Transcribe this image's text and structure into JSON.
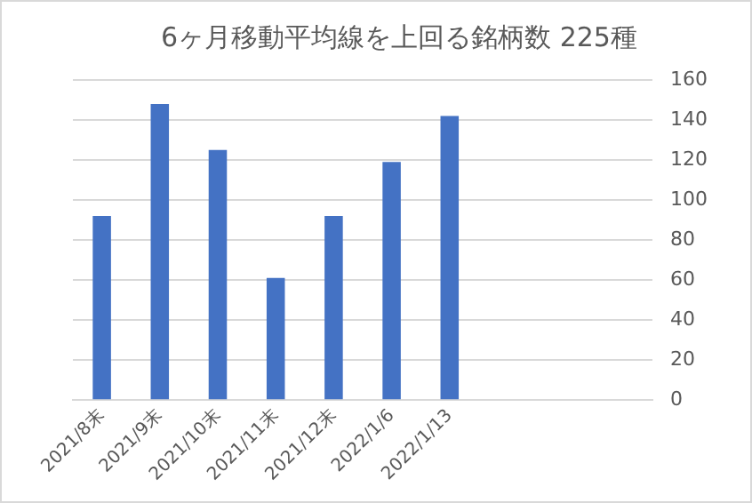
{
  "chart_data": {
    "type": "bar",
    "title": "6ヶ月移動平均線を上回る銘柄数 225種",
    "categories": [
      "2021/8末",
      "2021/9末",
      "2021/10末",
      "2021/11末",
      "2021/12末",
      "2022/1/6",
      "2022/1/13",
      null,
      null,
      null
    ],
    "values": [
      92,
      148,
      125,
      61,
      92,
      119,
      142,
      null,
      null,
      null
    ],
    "color": "#4472c4",
    "ylim": [
      0,
      160
    ],
    "yticks": [
      0,
      20,
      40,
      60,
      80,
      100,
      120,
      140,
      160
    ],
    "grid": "y",
    "legend": false
  }
}
